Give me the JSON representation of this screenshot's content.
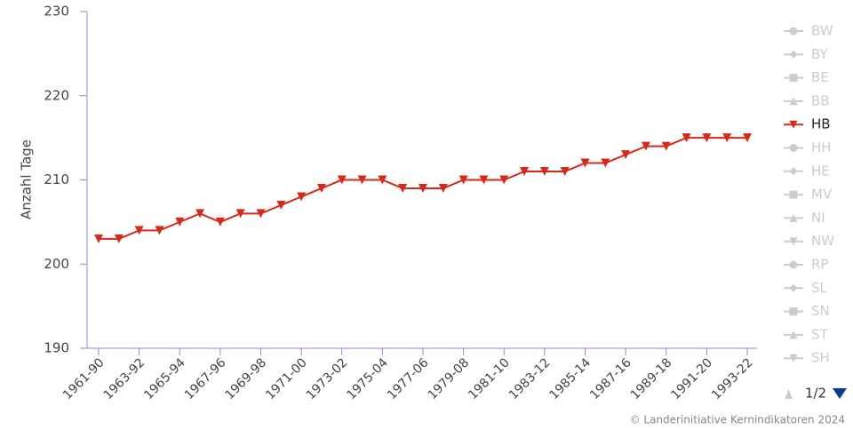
{
  "chart_data": {
    "type": "line",
    "y_axis_label": "Anzahl Tage",
    "categories": [
      "1961-90",
      null,
      "1963-92",
      null,
      "1965-94",
      null,
      "1967-96",
      null,
      "1969-98",
      null,
      "1971-00",
      null,
      "1973-02",
      null,
      "1975-04",
      null,
      "1977-06",
      null,
      "1979-08",
      null,
      "1981-10",
      null,
      "1983-12",
      null,
      "1985-14",
      null,
      "1987-16",
      null,
      "1989-18",
      null,
      "1991-20",
      null,
      "1993-22"
    ],
    "series": [
      {
        "name": "BW",
        "visible": false,
        "marker": "circle"
      },
      {
        "name": "BY",
        "visible": false,
        "marker": "diamond"
      },
      {
        "name": "BE",
        "visible": false,
        "marker": "square"
      },
      {
        "name": "BB",
        "visible": false,
        "marker": "triangle"
      },
      {
        "name": "HB",
        "visible": true,
        "marker": "triangle-down",
        "color": "#d42a1c",
        "values": [
          203,
          203,
          204,
          204,
          205,
          206,
          205,
          206,
          206,
          207,
          208,
          209,
          210,
          210,
          210,
          209,
          209,
          209,
          210,
          210,
          210,
          211,
          211,
          211,
          212,
          212,
          213,
          214,
          214,
          215,
          215,
          215,
          215
        ]
      },
      {
        "name": "HH",
        "visible": false,
        "marker": "circle"
      },
      {
        "name": "HE",
        "visible": false,
        "marker": "diamond"
      },
      {
        "name": "MV",
        "visible": false,
        "marker": "square"
      },
      {
        "name": "NI",
        "visible": false,
        "marker": "triangle"
      },
      {
        "name": "NW",
        "visible": false,
        "marker": "triangle-down"
      },
      {
        "name": "RP",
        "visible": false,
        "marker": "circle"
      },
      {
        "name": "SL",
        "visible": false,
        "marker": "diamond"
      },
      {
        "name": "SN",
        "visible": false,
        "marker": "square"
      },
      {
        "name": "ST",
        "visible": false,
        "marker": "triangle"
      },
      {
        "name": "SH",
        "visible": false,
        "marker": "triangle-down"
      }
    ],
    "ylim": [
      190,
      230
    ],
    "yticks": [
      190,
      200,
      210,
      220,
      230
    ],
    "grid": false,
    "legend_position": "right",
    "legend_page": "1/2",
    "credits": "© Landerinitiative Kernindikatoren 2024"
  }
}
